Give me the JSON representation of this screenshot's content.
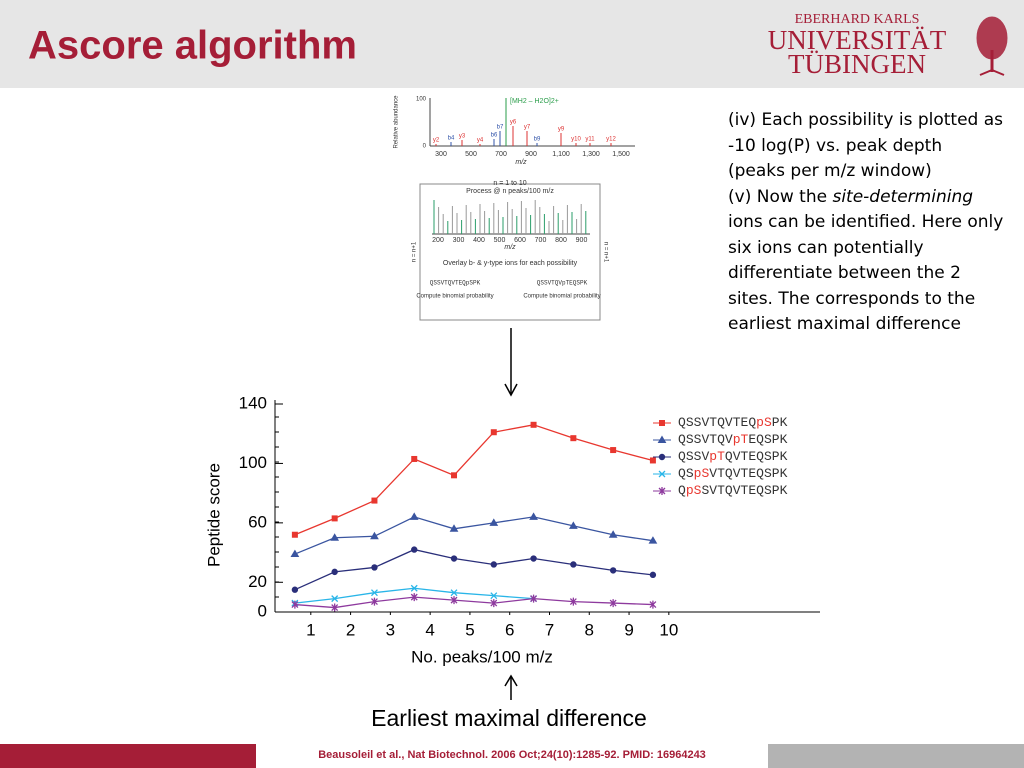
{
  "header": {
    "title": "Ascore algorithm"
  },
  "logo": {
    "lines": [
      "EBERHARD KARLS",
      "UNIVERSITÄT",
      "TÜBINGEN"
    ]
  },
  "text": {
    "paragraphs": [
      [
        {
          "text": "(iv) Each possibility is plotted as -10 log(P) vs. peak depth (peaks per m/z window)"
        }
      ],
      [
        {
          "text": "(v) Now the "
        },
        {
          "text": "site-determining",
          "italic": true
        },
        {
          "text": " ions can be identified. Here only six ions can potentially differentiate between the 2 sites. The corresponds to the earliest maximal difference"
        }
      ]
    ]
  },
  "figure": {
    "spectrum_ylabel": "Relative abundance",
    "spectrum_yticks": [
      "100",
      "0"
    ],
    "spectrum_xticks": [
      "300",
      "500",
      "700",
      "900",
      "1,100",
      "1,300",
      "1,500"
    ],
    "spectrum_xlabel": "m/z",
    "precursor": "[MH2 – H2O]2+",
    "peaks": [
      "y2",
      "b4",
      "y3",
      "y4",
      "b6",
      "b7",
      "y6",
      "y7",
      "b9",
      "y9",
      "y10",
      "y11",
      "y12"
    ],
    "loop_label": "n = 1 to 10",
    "process": "Process @ n peaks/100 m/z",
    "window_xticks": [
      "200",
      "300",
      "400",
      "500",
      "600",
      "700",
      "800",
      "900"
    ],
    "window_xlabel": "m/z",
    "overlay": "Overlay b- & y-type ions for each possibility",
    "sequences": [
      "QSSVTQVTEQpSPK",
      "QSSVTQVpTEQSPK"
    ],
    "compute": [
      "Compute binomial probability",
      "Compute binomial probability"
    ],
    "side": [
      "n = n+1",
      "n = n+1"
    ]
  },
  "chart_data": {
    "type": "line",
    "x_label": "No. peaks/100 m/z",
    "y_label": "Peptide score",
    "x": [
      0.6,
      1.6,
      2.6,
      3.6,
      4.6,
      5.6,
      6.6,
      7.6,
      8.6,
      9.6
    ],
    "xlim": [
      0.1,
      13.8
    ],
    "xticks": [
      1,
      2,
      3,
      4,
      5,
      6,
      7,
      8,
      9,
      10
    ],
    "ylim": [
      0,
      140
    ],
    "yticks": [
      0,
      20,
      60,
      100,
      140
    ],
    "series": [
      {
        "name": "QSSVTQVTEQpSPK",
        "color": "#e8372f",
        "marker": "square",
        "values": [
          52,
          63,
          75,
          103,
          92,
          121,
          126,
          117,
          109,
          102
        ]
      },
      {
        "name": "QSSVTQVpTEQSPK",
        "color": "#3a55a0",
        "marker": "triangle",
        "values": [
          39,
          50,
          51,
          64,
          56,
          60,
          64,
          58,
          52,
          48
        ]
      },
      {
        "name": "QSSVpTQVTEQSPK",
        "color": "#2a2f7a",
        "marker": "circle",
        "values": [
          15,
          27,
          30,
          42,
          36,
          32,
          36,
          32,
          28,
          25
        ]
      },
      {
        "name": "QSpSVTQVTEQSPK",
        "color": "#29b5e8",
        "marker": "x",
        "values": [
          6,
          9,
          13,
          16,
          13,
          11,
          9,
          null,
          null,
          null
        ]
      },
      {
        "name": "QpSSVTQVTEQSPK",
        "color": "#8e3a9e",
        "marker": "star",
        "values": [
          5,
          3,
          7,
          10,
          8,
          6,
          9,
          7,
          6,
          5
        ]
      }
    ]
  },
  "caption": "Earliest maximal difference",
  "footer": "Beausoleil et al., Nat Biotechnol. 2006 Oct;24(10):1285-92. PMID: 16964243"
}
